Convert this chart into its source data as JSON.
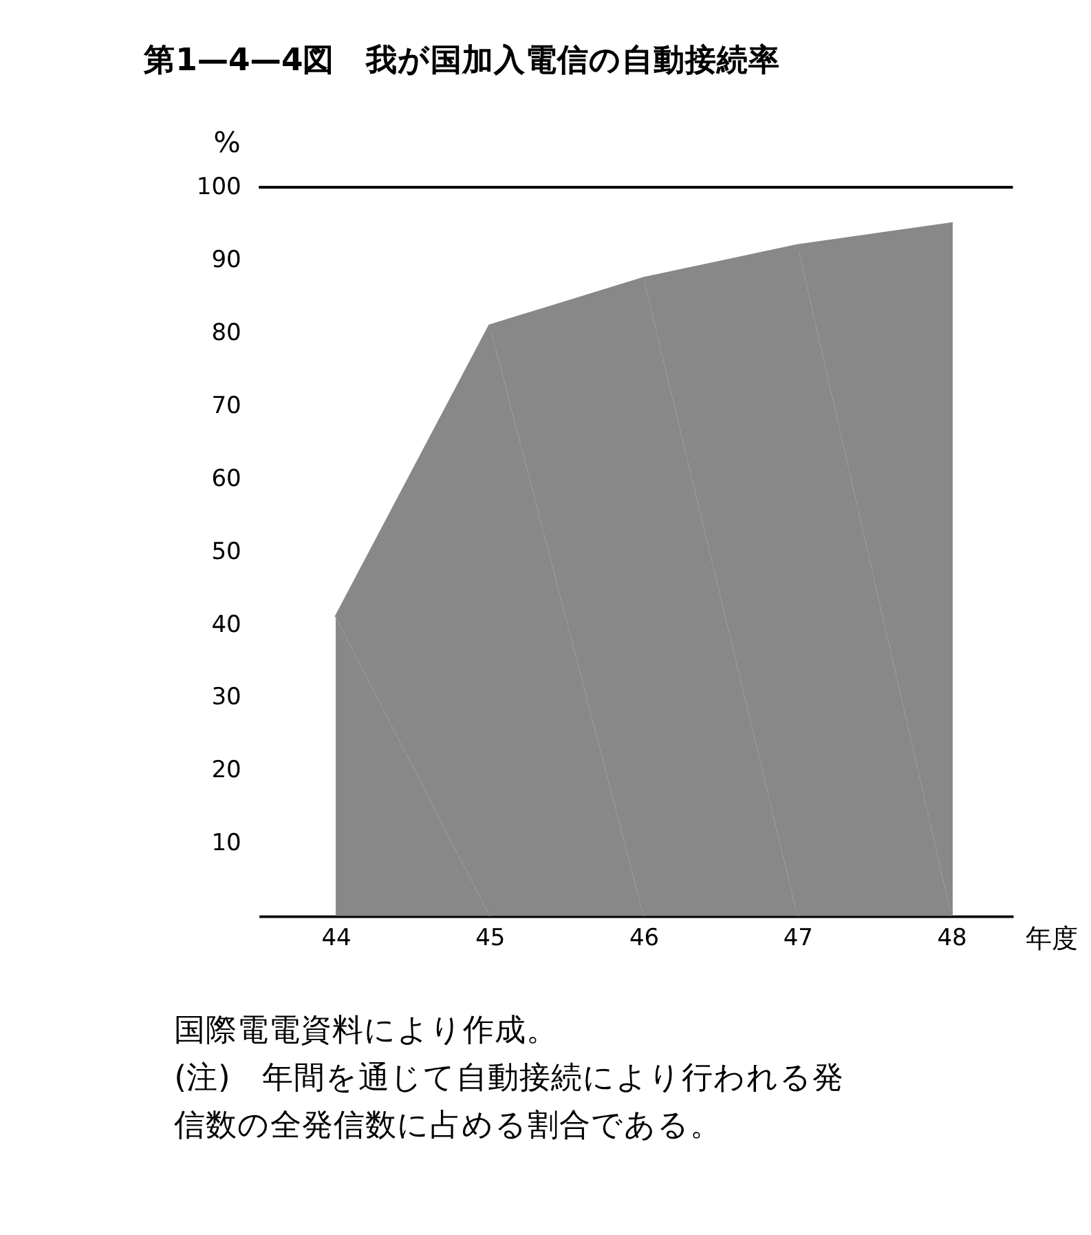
{
  "chart_data": {
    "type": "area",
    "title": "第1—4—4図　我が国加入電信の自動接続率",
    "xlabel": "年度",
    "ylabel": "%",
    "x": [
      44,
      45,
      46,
      47,
      48
    ],
    "series": [
      {
        "color": "#888888",
        "values": [
          41,
          81,
          87.5,
          92,
          95
        ]
      }
    ],
    "xlim": [
      43.5,
      48.4
    ],
    "xticks": [
      44,
      45,
      46,
      47,
      48
    ],
    "ylim": [
      0,
      100
    ],
    "yticks": [
      10,
      20,
      30,
      40,
      50,
      60,
      70,
      80,
      90,
      100
    ],
    "ref_lines": [
      {
        "axis": "y",
        "value": 100
      }
    ],
    "grid": false,
    "annotations": [
      "国際電電資料により作成。",
      "(注)　年間を通じて自動接続により行われる発信数の全発信数に占める割合である。"
    ]
  }
}
